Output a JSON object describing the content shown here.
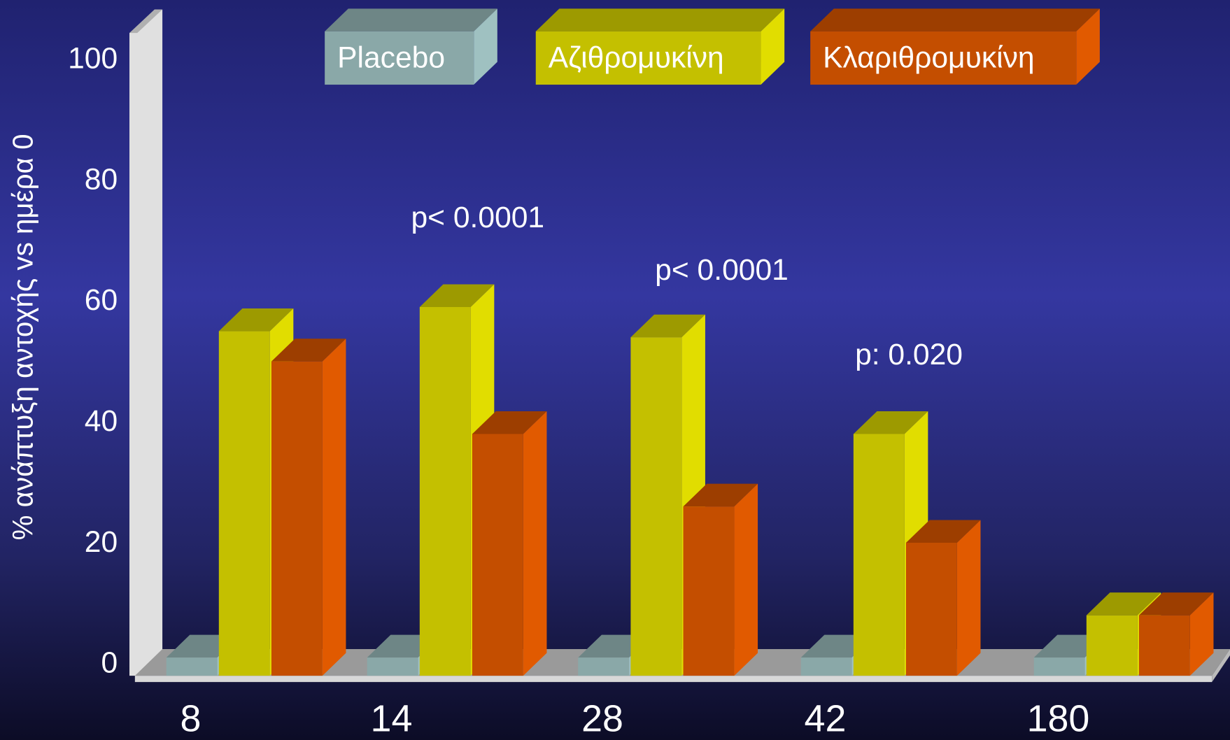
{
  "chart_data": {
    "type": "bar3d",
    "y_label": "% ανάπτυξη αντοχής vs ημέρα 0",
    "categories": [
      "8",
      "14",
      "28",
      "42",
      "180"
    ],
    "series": [
      {
        "name": "Placebo",
        "color": "#8aa8a8",
        "values": [
          3,
          3,
          3,
          3,
          3
        ]
      },
      {
        "name": "Αζιθρομυκίνη",
        "color": "#c4c000",
        "values": [
          57,
          61,
          56,
          40,
          10
        ]
      },
      {
        "name": "Κλαριθρομυκίνη",
        "color": "#c44e00",
        "values": [
          52,
          40,
          28,
          22,
          10
        ]
      }
    ],
    "ylim": [
      0,
      100
    ],
    "yticks": [
      0,
      20,
      40,
      60,
      80,
      100
    ],
    "grid": false,
    "annotations": [
      "p< 0.0001",
      "p< 0.0001",
      "p: 0.020"
    ]
  }
}
